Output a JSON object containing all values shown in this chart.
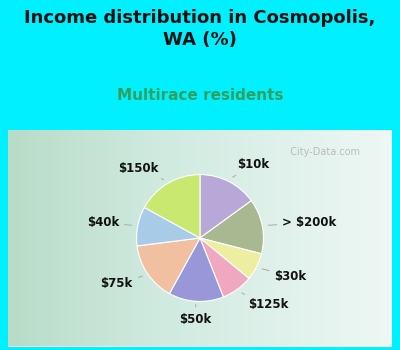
{
  "title": "Income distribution in Cosmopolis,\nWA (%)",
  "subtitle": "Multirace residents",
  "labels": [
    "$10k",
    "> $200k",
    "$30k",
    "$125k",
    "$50k",
    "$75k",
    "$40k",
    "$150k"
  ],
  "sizes": [
    15,
    14,
    7,
    8,
    14,
    15,
    10,
    17
  ],
  "colors": [
    "#b8a8d8",
    "#a8b890",
    "#eeeea0",
    "#f0a8c0",
    "#9898d8",
    "#f0c0a0",
    "#a8cce8",
    "#c8e870"
  ],
  "startangle": 90,
  "bg_top": "#00f0ff",
  "bg_chart_left": "#c8e8d8",
  "bg_chart_right": "#e8f4f0",
  "title_fontsize": 13,
  "title_color": "#111111",
  "subtitle_color": "#30a060",
  "subtitle_fontsize": 11,
  "label_fontsize": 8.5,
  "watermark": "  City-Data.com"
}
